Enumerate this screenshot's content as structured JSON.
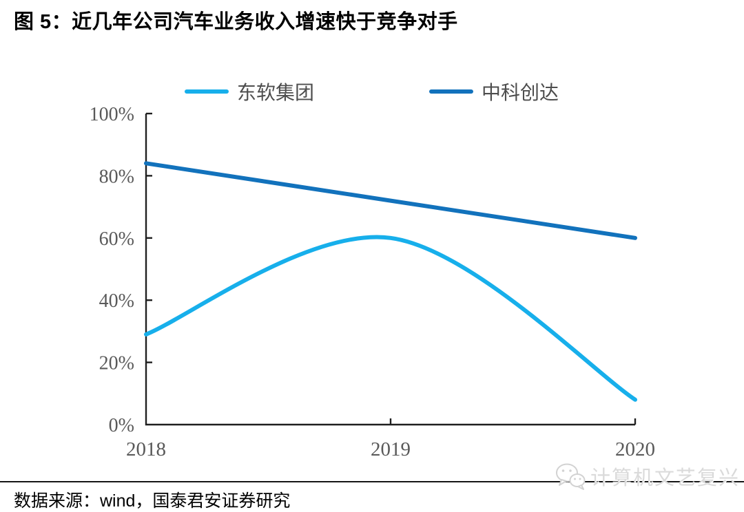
{
  "figure": {
    "title": "图 5：近几年公司汽车业务收入增速快于竞争对手"
  },
  "chart_data": {
    "type": "line",
    "title": "近几年公司汽车业务收入增速快于竞争对手",
    "x": [
      2018,
      2019,
      2020
    ],
    "xticks": [
      "2018",
      "2019",
      "2020"
    ],
    "yticks": [
      "0%",
      "20%",
      "40%",
      "60%",
      "80%",
      "100%"
    ],
    "ylim": [
      0,
      100
    ],
    "grid": false,
    "legend_position": "top",
    "smooth": true,
    "series": [
      {
        "name": "东软集团",
        "color": "#17AFEB",
        "values": [
          29,
          60,
          8
        ]
      },
      {
        "name": "中科创达",
        "color": "#1272BC",
        "values": [
          84,
          72,
          60
        ]
      }
    ]
  },
  "watermark": {
    "icon": "wechat-icon",
    "text": "计算机文艺复兴"
  },
  "footer": {
    "source": "数据来源：wind，国泰君安证券研究"
  }
}
